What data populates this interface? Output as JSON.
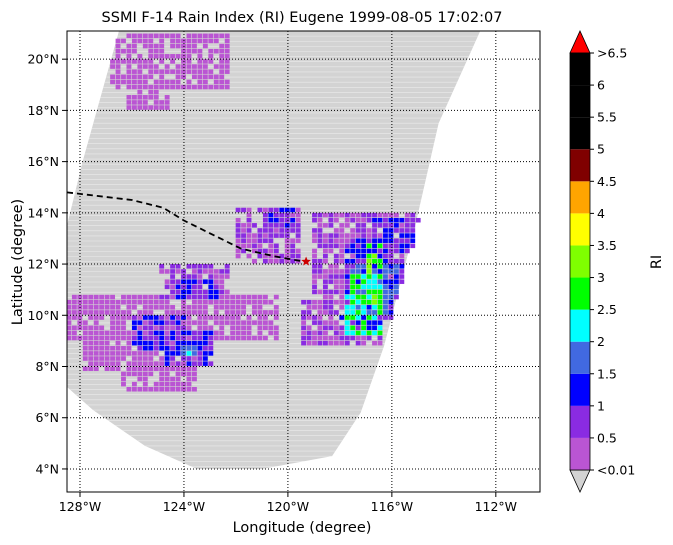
{
  "chart_data": {
    "type": "heatmap",
    "title": "SSMI F-14 Rain Index (RI) Eugene 1999-08-05 17:02:07",
    "xlabel": "Longitude (degree)",
    "ylabel": "Latitude (degree)",
    "xlim": [
      -128.5,
      -110.3
    ],
    "ylim": [
      3.1,
      21.1
    ],
    "x_ticks": [
      {
        "value": -128,
        "label": "128°W"
      },
      {
        "value": -124,
        "label": "124°W"
      },
      {
        "value": -120,
        "label": "120°W"
      },
      {
        "value": -116,
        "label": "116°W"
      },
      {
        "value": -112,
        "label": "112°W"
      }
    ],
    "y_ticks": [
      {
        "value": 4,
        "label": "4°N"
      },
      {
        "value": 6,
        "label": "6°N"
      },
      {
        "value": 8,
        "label": "8°N"
      },
      {
        "value": 10,
        "label": "10°N"
      },
      {
        "value": 12,
        "label": "12°N"
      },
      {
        "value": 14,
        "label": "14°N"
      },
      {
        "value": 16,
        "label": "16°N"
      },
      {
        "value": 18,
        "label": "18°N"
      },
      {
        "value": 20,
        "label": "20°N"
      }
    ],
    "grid": true,
    "swath_color": "#d3d3d3",
    "swath_polygon": [
      [
        -126.5,
        21.1
      ],
      [
        -112.6,
        21.1
      ],
      [
        -114.2,
        17.5
      ],
      [
        -115.1,
        13.5
      ],
      [
        -116.3,
        8.8
      ],
      [
        -117.2,
        6.2
      ],
      [
        -118.3,
        4.5
      ],
      [
        -121.0,
        4.0
      ],
      [
        -123.5,
        4.0
      ],
      [
        -125.5,
        4.9
      ],
      [
        -127.5,
        6.3
      ],
      [
        -128.5,
        7.2
      ],
      [
        -128.5,
        13.5
      ],
      [
        -127.9,
        16.0
      ]
    ],
    "colorbar": {
      "label": "RI",
      "tick_labels": [
        "<0.01",
        "0.5",
        "1",
        "1.5",
        "2",
        "2.5",
        "3",
        "3.5",
        "4",
        "4.5",
        "5",
        "5.5",
        "6",
        ">6.5"
      ],
      "under_color": "#d3d3d3",
      "over_color": "#ff0000",
      "colors": [
        "#ba55d3",
        "#8a2be2",
        "#0000ff",
        "#4169e1",
        "#00ffff",
        "#00ff00",
        "#7fff00",
        "#ffff00",
        "#ffa500",
        "#800000",
        "#000000",
        "#000000",
        "#000000"
      ]
    },
    "rain_regions": [
      {
        "lon": [
          -126.8,
          -122.3
        ],
        "lat": [
          18.8,
          20.9
        ],
        "ri": 0.3
      },
      {
        "lon": [
          -126.2,
          -124.6
        ],
        "lat": [
          18.0,
          18.8
        ],
        "ri": 0.3
      },
      {
        "lon": [
          -128.5,
          -120.5
        ],
        "lat": [
          9.0,
          10.6
        ],
        "ri": 0.3
      },
      {
        "lon": [
          -127.8,
          -123.5
        ],
        "lat": [
          7.8,
          9.2
        ],
        "ri": 0.3
      },
      {
        "lon": [
          -126.5,
          -123.6
        ],
        "lat": [
          7.0,
          7.9
        ],
        "ri": 0.3
      },
      {
        "lon": [
          -125.0,
          -122.4
        ],
        "lat": [
          10.6,
          11.9
        ],
        "ri": 0.5
      },
      {
        "lon": [
          -124.3,
          -122.8
        ],
        "lat": [
          10.6,
          11.2
        ],
        "ri": 1.0
      },
      {
        "lon": [
          -126.0,
          -124.0
        ],
        "lat": [
          8.6,
          9.8
        ],
        "ri": 1.0
      },
      {
        "lon": [
          -124.8,
          -123.1
        ],
        "lat": [
          8.1,
          9.3
        ],
        "ri": 1.0
      },
      {
        "lon": [
          -124.1,
          -123.6
        ],
        "lat": [
          8.3,
          8.7
        ],
        "ri": 2.0
      },
      {
        "lon": [
          -122.0,
          -119.5
        ],
        "lat": [
          12.0,
          14.0
        ],
        "ri": 0.5
      },
      {
        "lon": [
          -121.0,
          -119.8
        ],
        "lat": [
          13.4,
          14.0
        ],
        "ri": 1.0
      },
      {
        "lon": [
          -119.0,
          -114.5
        ],
        "lat": [
          10.4,
          13.8
        ],
        "ri": 0.5
      },
      {
        "lon": [
          -116.8,
          -114.9
        ],
        "lat": [
          12.4,
          13.6
        ],
        "ri": 1.0
      },
      {
        "lon": [
          -119.5,
          -116.5
        ],
        "lat": [
          8.8,
          10.5
        ],
        "ri": 0.5
      },
      {
        "lon": [
          -118.0,
          -116.5
        ],
        "lat": [
          9.2,
          10.2
        ],
        "ri": 1.0
      },
      {
        "lon": [
          -117.8,
          -115.5
        ],
        "lat": [
          9.8,
          12.8
        ],
        "ri": 1.0
      },
      {
        "lon": [
          -117.5,
          -115.8
        ],
        "lat": [
          10.0,
          11.8
        ],
        "ri": 1.5
      },
      {
        "lon": [
          -117.8,
          -116.4
        ],
        "lat": [
          9.2,
          10.6
        ],
        "ri": 2.5
      },
      {
        "lon": [
          -117.5,
          -116.3
        ],
        "lat": [
          10.4,
          11.4
        ],
        "ri": 2.5
      },
      {
        "lon": [
          -117.2,
          -116.6
        ],
        "lat": [
          10.4,
          10.9
        ],
        "ri": 3.0
      },
      {
        "lon": [
          -116.9,
          -116.3
        ],
        "lat": [
          11.5,
          12.8
        ],
        "ri": 3.0
      }
    ],
    "storm_track": {
      "color": "#000000",
      "points": [
        [
          -128.5,
          14.8
        ],
        [
          -126.0,
          14.5
        ],
        [
          -124.8,
          14.2
        ],
        [
          -124.0,
          13.7
        ],
        [
          -122.8,
          13.1
        ],
        [
          -121.8,
          12.6
        ],
        [
          -120.5,
          12.3
        ],
        [
          -119.4,
          12.1
        ]
      ],
      "current_position": {
        "lon": -119.3,
        "lat": 12.1,
        "color": "#cc0000"
      }
    }
  }
}
